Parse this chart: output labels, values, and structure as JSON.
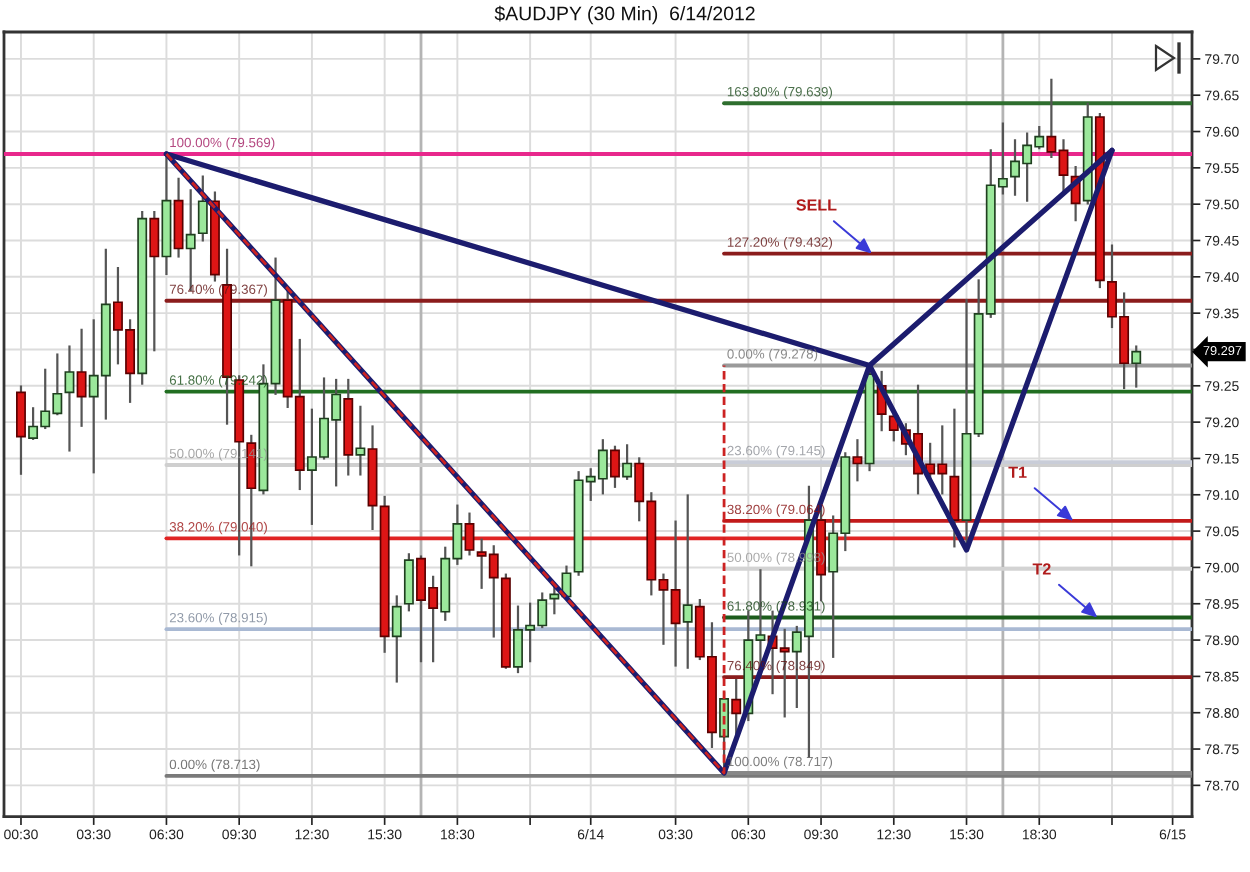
{
  "chart_data": {
    "type": "candlestick",
    "title": "$AUDJPY (30 Min)  6/14/2012",
    "x": [
      "2012-06-13T00:30",
      "2012-06-13T01:00",
      "2012-06-13T01:30",
      "2012-06-13T02:00",
      "2012-06-13T02:30",
      "2012-06-13T03:00",
      "2012-06-13T03:30",
      "2012-06-13T04:00",
      "2012-06-13T04:30",
      "2012-06-13T05:00",
      "2012-06-13T05:30",
      "2012-06-13T06:00",
      "2012-06-13T06:30",
      "2012-06-13T07:00",
      "2012-06-13T07:30",
      "2012-06-13T08:00",
      "2012-06-13T08:30",
      "2012-06-13T09:00",
      "2012-06-13T09:30",
      "2012-06-13T10:00",
      "2012-06-13T10:30",
      "2012-06-13T11:00",
      "2012-06-13T11:30",
      "2012-06-13T12:00",
      "2012-06-13T12:30",
      "2012-06-13T13:00",
      "2012-06-13T13:30",
      "2012-06-13T14:00",
      "2012-06-13T14:30",
      "2012-06-13T15:00",
      "2012-06-13T15:30",
      "2012-06-13T16:00",
      "2012-06-13T16:30",
      "2012-06-13T17:00",
      "2012-06-13T17:30",
      "2012-06-13T18:00",
      "2012-06-13T18:30",
      "2012-06-13T19:00",
      "2012-06-13T19:30",
      "2012-06-13T20:00",
      "2012-06-13T20:30",
      "2012-06-13T21:00",
      "2012-06-13T21:30",
      "2012-06-13T22:00",
      "2012-06-13T22:30",
      "2012-06-13T23:00",
      "2012-06-13T23:30",
      "2012-06-14T00:00",
      "2012-06-14T00:30",
      "2012-06-14T01:00",
      "2012-06-14T01:30",
      "2012-06-14T02:00",
      "2012-06-14T02:30",
      "2012-06-14T03:00",
      "2012-06-14T03:30",
      "2012-06-14T04:00",
      "2012-06-14T04:30",
      "2012-06-14T05:00",
      "2012-06-14T05:30",
      "2012-06-14T06:00",
      "2012-06-14T06:30",
      "2012-06-14T07:00",
      "2012-06-14T07:30",
      "2012-06-14T08:00",
      "2012-06-14T08:30",
      "2012-06-14T09:00",
      "2012-06-14T09:30",
      "2012-06-14T10:00",
      "2012-06-14T10:30",
      "2012-06-14T11:00",
      "2012-06-14T11:30",
      "2012-06-14T12:00",
      "2012-06-14T12:30",
      "2012-06-14T13:00",
      "2012-06-14T13:30",
      "2012-06-14T14:00",
      "2012-06-14T14:30",
      "2012-06-14T15:00",
      "2012-06-14T15:30",
      "2012-06-14T16:00",
      "2012-06-14T16:30",
      "2012-06-14T17:00",
      "2012-06-14T17:30",
      "2012-06-14T18:00",
      "2012-06-14T18:30",
      "2012-06-14T19:00",
      "2012-06-14T19:30",
      "2012-06-14T20:00",
      "2012-06-14T20:30",
      "2012-06-14T21:00",
      "2012-06-14T21:30",
      "2012-06-14T22:00",
      "2012-06-14T22:30"
    ],
    "ohlc": [
      [
        79.241,
        79.249,
        79.129,
        79.18
      ],
      [
        79.178,
        79.219,
        79.177,
        79.194
      ],
      [
        79.194,
        79.272,
        79.192,
        79.215
      ],
      [
        79.212,
        79.293,
        79.211,
        79.239
      ],
      [
        79.241,
        79.304,
        79.161,
        79.269
      ],
      [
        79.269,
        79.327,
        79.195,
        79.235
      ],
      [
        79.235,
        79.34,
        79.131,
        79.264
      ],
      [
        79.264,
        79.437,
        79.205,
        79.362
      ],
      [
        79.365,
        79.412,
        79.281,
        79.327
      ],
      [
        79.327,
        79.34,
        79.228,
        79.267
      ],
      [
        79.267,
        79.489,
        79.253,
        79.48
      ],
      [
        79.48,
        79.489,
        79.299,
        79.428
      ],
      [
        79.428,
        79.569,
        79.404,
        79.505
      ],
      [
        79.505,
        79.535,
        79.428,
        79.439
      ],
      [
        79.439,
        79.519,
        79.382,
        79.458
      ],
      [
        79.46,
        79.538,
        79.45,
        79.504
      ],
      [
        79.504,
        79.516,
        79.395,
        79.403
      ],
      [
        79.389,
        79.437,
        79.198,
        79.262
      ],
      [
        79.258,
        79.263,
        79.018,
        79.173
      ],
      [
        79.171,
        79.181,
        79.003,
        79.109
      ],
      [
        79.106,
        79.278,
        79.102,
        79.253
      ],
      [
        79.253,
        79.425,
        79.239,
        79.368
      ],
      [
        79.368,
        79.384,
        79.221,
        79.235
      ],
      [
        79.235,
        79.313,
        79.108,
        79.134
      ],
      [
        79.134,
        79.217,
        79.06,
        79.152
      ],
      [
        79.152,
        79.26,
        79.15,
        79.205
      ],
      [
        79.203,
        79.258,
        79.113,
        79.238
      ],
      [
        79.232,
        79.258,
        79.128,
        79.155
      ],
      [
        79.155,
        79.221,
        79.128,
        79.164
      ],
      [
        79.163,
        79.194,
        79.053,
        79.085
      ],
      [
        79.084,
        79.097,
        78.884,
        78.905
      ],
      [
        78.905,
        78.96,
        78.843,
        78.946
      ],
      [
        78.95,
        79.018,
        78.941,
        79.01
      ],
      [
        79.012,
        79.015,
        78.871,
        78.955
      ],
      [
        78.972,
        78.987,
        78.871,
        78.944
      ],
      [
        78.939,
        79.027,
        78.928,
        79.012
      ],
      [
        79.012,
        79.085,
        79.005,
        79.06
      ],
      [
        79.06,
        79.074,
        79.018,
        79.024
      ],
      [
        79.021,
        79.038,
        78.972,
        79.016
      ],
      [
        79.018,
        79.029,
        78.905,
        78.986
      ],
      [
        78.985,
        78.99,
        78.862,
        78.863
      ],
      [
        78.863,
        78.946,
        78.856,
        78.914
      ],
      [
        78.914,
        78.95,
        78.871,
        78.92
      ],
      [
        78.92,
        78.964,
        78.918,
        78.955
      ],
      [
        78.957,
        78.978,
        78.937,
        78.963
      ],
      [
        78.96,
        79.001,
        78.957,
        78.992
      ],
      [
        78.994,
        79.131,
        78.99,
        79.12
      ],
      [
        79.118,
        79.135,
        79.093,
        79.125
      ],
      [
        79.122,
        79.175,
        79.102,
        79.161
      ],
      [
        79.161,
        79.166,
        79.111,
        79.125
      ],
      [
        79.125,
        79.168,
        79.122,
        79.143
      ],
      [
        79.143,
        79.15,
        79.065,
        79.091
      ],
      [
        79.091,
        79.102,
        78.963,
        78.983
      ],
      [
        78.983,
        78.99,
        78.895,
        78.969
      ],
      [
        78.969,
        79.063,
        78.865,
        78.923
      ],
      [
        78.925,
        79.099,
        78.862,
        78.948
      ],
      [
        78.946,
        78.955,
        78.874,
        78.877
      ],
      [
        78.877,
        78.923,
        78.753,
        78.773
      ],
      [
        78.767,
        78.827,
        78.717,
        78.819
      ],
      [
        78.818,
        78.845,
        78.767,
        78.799
      ],
      [
        78.799,
        78.939,
        78.79,
        78.9
      ],
      [
        78.9,
        78.996,
        78.85,
        78.907
      ],
      [
        78.905,
        78.939,
        78.827,
        78.889
      ],
      [
        78.889,
        78.914,
        78.795,
        78.884
      ],
      [
        78.884,
        78.918,
        78.808,
        78.911
      ],
      [
        78.905,
        79.111,
        78.74,
        79.065
      ],
      [
        79.065,
        79.093,
        78.955,
        78.99
      ],
      [
        78.994,
        79.07,
        78.877,
        79.047
      ],
      [
        79.047,
        79.157,
        79.024,
        79.152
      ],
      [
        79.152,
        79.175,
        79.12,
        79.143
      ],
      [
        79.143,
        79.278,
        79.134,
        79.266
      ],
      [
        79.25,
        79.269,
        79.189,
        79.211
      ],
      [
        79.208,
        79.217,
        79.175,
        79.189
      ],
      [
        79.189,
        79.197,
        79.156,
        79.17
      ],
      [
        79.184,
        79.25,
        79.102,
        79.129
      ],
      [
        79.142,
        79.17,
        79.12,
        79.129
      ],
      [
        79.142,
        79.194,
        79.102,
        79.129
      ],
      [
        79.125,
        79.217,
        79.029,
        79.065
      ],
      [
        79.065,
        79.368,
        79.024,
        79.184
      ],
      [
        79.184,
        79.395,
        79.181,
        79.349
      ],
      [
        79.349,
        79.574,
        79.345,
        79.526
      ],
      [
        79.524,
        79.611,
        79.515,
        79.535
      ],
      [
        79.538,
        79.588,
        79.513,
        79.559
      ],
      [
        79.556,
        79.597,
        79.505,
        79.581
      ],
      [
        79.579,
        79.606,
        79.577,
        79.593
      ],
      [
        79.593,
        79.671,
        79.565,
        79.572
      ],
      [
        79.574,
        79.588,
        79.519,
        79.54
      ],
      [
        79.538,
        79.551,
        79.478,
        79.501
      ],
      [
        79.505,
        79.638,
        79.501,
        79.62
      ],
      [
        79.62,
        79.624,
        79.386,
        79.395
      ],
      [
        79.393,
        79.443,
        79.331,
        79.345
      ],
      [
        79.345,
        79.377,
        79.247,
        79.281
      ],
      [
        79.281,
        79.304,
        79.249,
        79.297
      ]
    ],
    "series": [
      {
        "type": "line",
        "x": [
          "2012-06-12T23:48",
          "2012-06-15T00:48"
        ],
        "values": [
          79.569,
          79.569
        ],
        "color": "#e8288c"
      },
      {
        "type": "line",
        "x": [
          "2012-06-13T06:30",
          "2012-06-15T00:48"
        ],
        "values": [
          79.367,
          79.367
        ],
        "color": "#8b1c1c"
      },
      {
        "type": "line",
        "x": [
          "2012-06-13T06:30",
          "2012-06-15T00:48"
        ],
        "values": [
          79.242,
          79.242
        ],
        "color": "#216e21"
      },
      {
        "type": "line",
        "x": [
          "2012-06-13T06:30",
          "2012-06-15T00:48"
        ],
        "values": [
          79.141,
          79.141
        ],
        "color": "#cfcfcf"
      },
      {
        "type": "line",
        "x": [
          "2012-06-13T06:30",
          "2012-06-15T00:48"
        ],
        "values": [
          79.04,
          79.04
        ],
        "color": "#e02424"
      },
      {
        "type": "line",
        "x": [
          "2012-06-13T06:30",
          "2012-06-15T00:48"
        ],
        "values": [
          78.915,
          78.915
        ],
        "color": "#a9b9d3"
      },
      {
        "type": "line",
        "x": [
          "2012-06-13T06:30",
          "2012-06-15T00:48"
        ],
        "values": [
          78.713,
          78.713
        ],
        "color": "#7a7a7a"
      },
      {
        "type": "line",
        "x": [
          "2012-06-14T05:30",
          "2012-06-15T00:48"
        ],
        "values": [
          79.639,
          79.639
        ],
        "color": "#2e6e2e"
      },
      {
        "type": "line",
        "x": [
          "2012-06-14T05:30",
          "2012-06-15T00:48"
        ],
        "values": [
          79.432,
          79.432
        ],
        "color": "#8b1c1c"
      },
      {
        "type": "line",
        "x": [
          "2012-06-14T05:30",
          "2012-06-15T00:48"
        ],
        "values": [
          79.278,
          79.278
        ],
        "color": "#9a9a9a"
      },
      {
        "type": "line",
        "x": [
          "2012-06-14T05:30",
          "2012-06-15T00:48"
        ],
        "values": [
          79.145,
          79.145
        ],
        "color": "#c9cdd8"
      },
      {
        "type": "line",
        "x": [
          "2012-06-14T05:30",
          "2012-06-15T00:48"
        ],
        "values": [
          79.064,
          79.064
        ],
        "color": "#c21a1a"
      },
      {
        "type": "line",
        "x": [
          "2012-06-14T05:30",
          "2012-06-15T00:48"
        ],
        "values": [
          78.998,
          78.998
        ],
        "color": "#d3d3d3"
      },
      {
        "type": "line",
        "x": [
          "2012-06-14T05:30",
          "2012-06-15T00:48"
        ],
        "values": [
          78.931,
          78.931
        ],
        "color": "#1c5c1c"
      },
      {
        "type": "line",
        "x": [
          "2012-06-14T05:30",
          "2012-06-15T00:48"
        ],
        "values": [
          78.849,
          78.849
        ],
        "color": "#8b1c1c"
      },
      {
        "type": "line",
        "x": [
          "2012-06-14T05:30",
          "2012-06-15T00:48"
        ],
        "values": [
          78.717,
          78.717
        ],
        "color": "#888888"
      },
      {
        "type": "line",
        "x": [
          "2012-06-13T06:30",
          "2012-06-14T11:30",
          "2012-06-14T21:30"
        ],
        "values": [
          79.569,
          79.278,
          79.574
        ],
        "color": "#1c1c6e"
      },
      {
        "type": "line",
        "x": [
          "2012-06-13T06:30",
          "2012-06-14T05:30",
          "2012-06-14T11:30",
          "2012-06-14T15:30",
          "2012-06-14T21:30"
        ],
        "values": [
          79.569,
          78.717,
          79.278,
          79.024,
          79.574
        ],
        "color": "#1c1c6e"
      },
      {
        "type": "line",
        "x": [
          "2012-06-13T06:30",
          "2012-06-14T05:30",
          "2012-06-14T05:30"
        ],
        "values": [
          79.569,
          78.717,
          79.278
        ],
        "color": "#cc2222",
        "line_style": "dashed"
      }
    ],
    "annotations": [
      {
        "text": "100.00% (79.569)",
        "x": "2012-06-13T06:30",
        "y": 79.569
      },
      {
        "text": "76.40% (79.367)",
        "x": "2012-06-13T06:30",
        "y": 79.367
      },
      {
        "text": "61.80% (79.242)",
        "x": "2012-06-13T06:30",
        "y": 79.242
      },
      {
        "text": "50.00% (79.141)",
        "x": "2012-06-13T06:30",
        "y": 79.141
      },
      {
        "text": "38.20% (79.040)",
        "x": "2012-06-13T06:30",
        "y": 79.04
      },
      {
        "text": "23.60% (78.915)",
        "x": "2012-06-13T06:30",
        "y": 78.915
      },
      {
        "text": "0.00% (78.713)",
        "x": "2012-06-13T06:30",
        "y": 78.713
      },
      {
        "text": "163.80% (79.639)",
        "x": "2012-06-14T05:30",
        "y": 79.639
      },
      {
        "text": "127.20% (79.432)",
        "x": "2012-06-14T05:30",
        "y": 79.432
      },
      {
        "text": "0.00% (79.278)",
        "x": "2012-06-14T05:30",
        "y": 79.278
      },
      {
        "text": "23.60% (79.145)",
        "x": "2012-06-14T05:30",
        "y": 79.145
      },
      {
        "text": "38.20% (79.064)",
        "x": "2012-06-14T05:30",
        "y": 79.064
      },
      {
        "text": "50.00% (78.998)",
        "x": "2012-06-14T05:30",
        "y": 78.998
      },
      {
        "text": "61.80% (78.931)",
        "x": "2012-06-14T05:30",
        "y": 78.931
      },
      {
        "text": "76.40% (78.849)",
        "x": "2012-06-14T05:30",
        "y": 78.849
      },
      {
        "text": "100.00% (78.717)",
        "x": "2012-06-14T05:30",
        "y": 78.717
      },
      {
        "text": "SELL",
        "x": "2012-06-14T11:36",
        "y": 79.432
      },
      {
        "text": "T1",
        "x": "2012-06-14T19:54",
        "y": 79.064
      },
      {
        "text": "T2",
        "x": "2012-06-14T20:54",
        "y": 78.931
      },
      "79.297"
    ],
    "ref_lines": [
      {
        "axis": "x",
        "value": "2012-06-13T17:00",
        "color": "#b4b4b4"
      },
      {
        "axis": "x",
        "value": "2012-06-14T17:00",
        "color": "#b4b4b4"
      }
    ],
    "xlim": [
      "2012-06-12T23:48",
      "2012-06-15T00:48"
    ],
    "xticks": [
      {
        "value": "2012-06-13T00:30",
        "label": "00:30"
      },
      {
        "value": "2012-06-13T03:30",
        "label": "03:30"
      },
      {
        "value": "2012-06-13T06:30",
        "label": "06:30"
      },
      {
        "value": "2012-06-13T09:30",
        "label": "09:30"
      },
      {
        "value": "2012-06-13T12:30",
        "label": "12:30"
      },
      {
        "value": "2012-06-13T15:30",
        "label": "15:30"
      },
      {
        "value": "2012-06-13T18:30",
        "label": "18:30"
      },
      {
        "value": "2012-06-13T21:30",
        "label": null
      },
      {
        "value": "2012-06-14T00:00",
        "label": "6/14"
      },
      {
        "value": "2012-06-14T03:30",
        "label": "03:30"
      },
      {
        "value": "2012-06-14T06:30",
        "label": "06:30"
      },
      {
        "value": "2012-06-14T09:30",
        "label": "09:30"
      },
      {
        "value": "2012-06-14T12:30",
        "label": "12:30"
      },
      {
        "value": "2012-06-14T15:30",
        "label": "15:30"
      },
      {
        "value": "2012-06-14T18:30",
        "label": "18:30"
      },
      {
        "value": "2012-06-14T21:30",
        "label": null
      },
      {
        "value": "2012-06-15T00:00",
        "label": "6/15"
      }
    ],
    "ylim": [
      78.657,
      79.737
    ],
    "yticks": [
      {
        "value": 78.7,
        "label": "78.70"
      },
      {
        "value": 78.75,
        "label": "78.75"
      },
      {
        "value": 78.8,
        "label": "78.80"
      },
      {
        "value": 78.85,
        "label": "78.85"
      },
      {
        "value": 78.9,
        "label": "78.90"
      },
      {
        "value": 78.95,
        "label": "78.95"
      },
      {
        "value": 79.0,
        "label": "79.00"
      },
      {
        "value": 79.05,
        "label": "79.05"
      },
      {
        "value": 79.1,
        "label": "79.10"
      },
      {
        "value": 79.15,
        "label": "79.15"
      },
      {
        "value": 79.2,
        "label": "79.20"
      },
      {
        "value": 79.25,
        "label": "79.25"
      },
      {
        "value": 79.3,
        "label": null
      },
      {
        "value": 79.35,
        "label": "79.35"
      },
      {
        "value": 79.4,
        "label": "79.40"
      },
      {
        "value": 79.45,
        "label": "79.45"
      },
      {
        "value": 79.5,
        "label": "79.50"
      },
      {
        "value": 79.55,
        "label": "79.55"
      },
      {
        "value": 79.6,
        "label": "79.60"
      },
      {
        "value": 79.65,
        "label": "79.65"
      },
      {
        "value": 79.7,
        "label": "79.70"
      }
    ],
    "grid": true
  }
}
